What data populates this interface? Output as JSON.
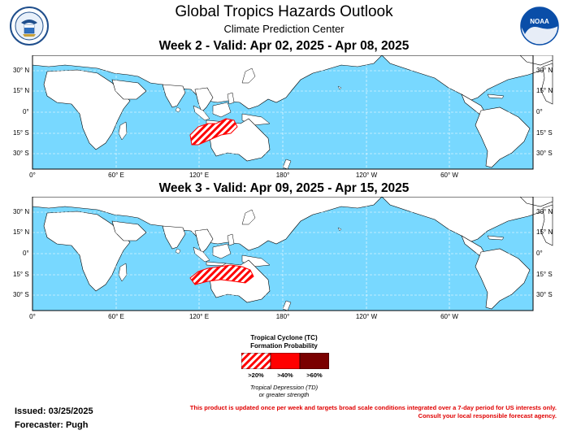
{
  "header": {
    "title": "Global Tropics Hazards Outlook",
    "subtitle": "Climate Prediction Center"
  },
  "logos": {
    "left": "commerce-department-seal",
    "right": "noaa-logo",
    "noaa_text": "NOAA"
  },
  "maps": [
    {
      "title": "Week 2 - Valid: Apr 02, 2025 - Apr 08, 2025",
      "hazard": "tropical-cyclone-formation >20%",
      "region": "northern-australia"
    },
    {
      "title": "Week 3 - Valid: Apr 09, 2025 - Apr 15, 2025",
      "hazard": "tropical-cyclone-formation >20%",
      "region": "northern-australia"
    }
  ],
  "axis": {
    "lat_labels": [
      "30° N",
      "15° N",
      "0°",
      "15° S",
      "30° S"
    ],
    "lon_labels": [
      "0°",
      "60° E",
      "120° E",
      "180°",
      "120° W",
      "60° W"
    ]
  },
  "legend": {
    "title_line1": "Tropical Cyclone (TC)",
    "title_line2": "Formation Probability",
    "levels": [
      {
        "label": ">20%",
        "color": "#ff0000",
        "pattern": "hatched"
      },
      {
        "label": ">40%",
        "color": "#ff0000",
        "pattern": "solid"
      },
      {
        "label": ">60%",
        "color": "#7a0000",
        "pattern": "solid"
      }
    ],
    "note_line1": "Tropical Depression (TD)",
    "note_line2": "or greater strength"
  },
  "footer": {
    "issued": "Issued: 03/25/2025",
    "forecaster": "Forecaster: Pugh",
    "disclaimer_line1": "This product is updated once per week and targets broad scale conditions integrated over a 7-day period for US interests only.",
    "disclaimer_line2": "Consult your local responsible forecast agency."
  },
  "colors": {
    "ocean": "#78d8ff",
    "land": "#ffffff",
    "hazard": "#ff0000",
    "disclaimer": "#e00000"
  }
}
